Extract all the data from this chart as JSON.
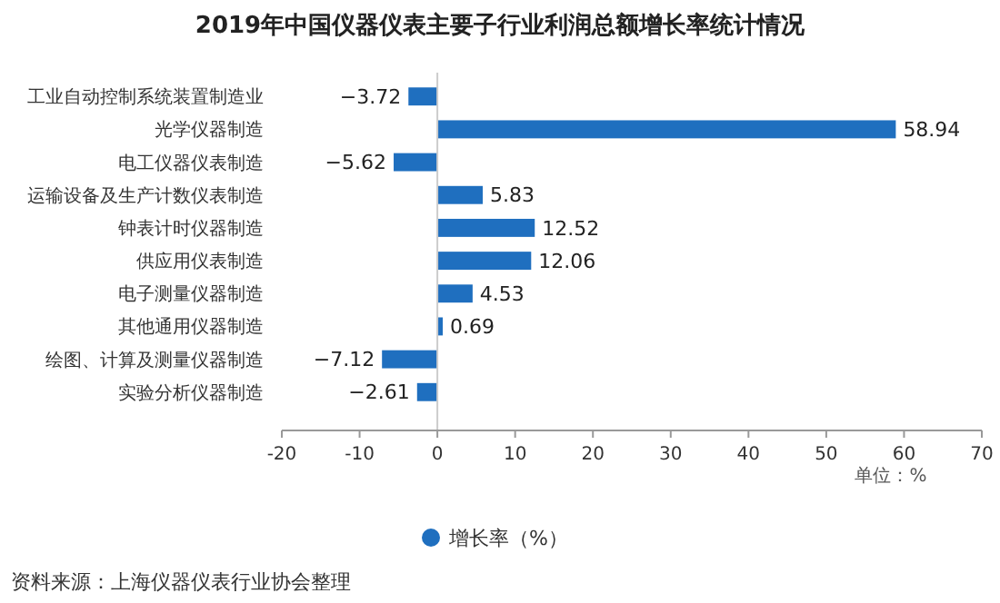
{
  "chart_data": {
    "type": "bar",
    "orientation": "horizontal",
    "title": "2019年中国仪器仪表主要子行业利润总额增长率统计情况",
    "categories": [
      "工业自动控制系统装置制造业",
      "光学仪器制造",
      "电工仪器仪表制造",
      "运输设备及生产计数仪表制造",
      "钟表计时仪器制造",
      "供应用仪表制造",
      "电子测量仪器制造",
      "其他通用仪器制造",
      "绘图、计算及测量仪器制造",
      "实验分析仪器制造"
    ],
    "series": [
      {
        "name": "增长率（%）",
        "color": "#1f6fbf",
        "values": [
          -3.72,
          58.94,
          -5.62,
          5.83,
          12.52,
          12.06,
          4.53,
          0.69,
          -7.12,
          -2.61
        ]
      }
    ],
    "xlim": [
      -20,
      70
    ],
    "xticks": [
      -20,
      -10,
      0,
      10,
      20,
      30,
      40,
      50,
      60,
      70
    ],
    "data_labels": true,
    "legend": "bottom",
    "annotations": [
      "单位：%",
      "资料来源：上海仪器仪表行业协会整理"
    ]
  }
}
